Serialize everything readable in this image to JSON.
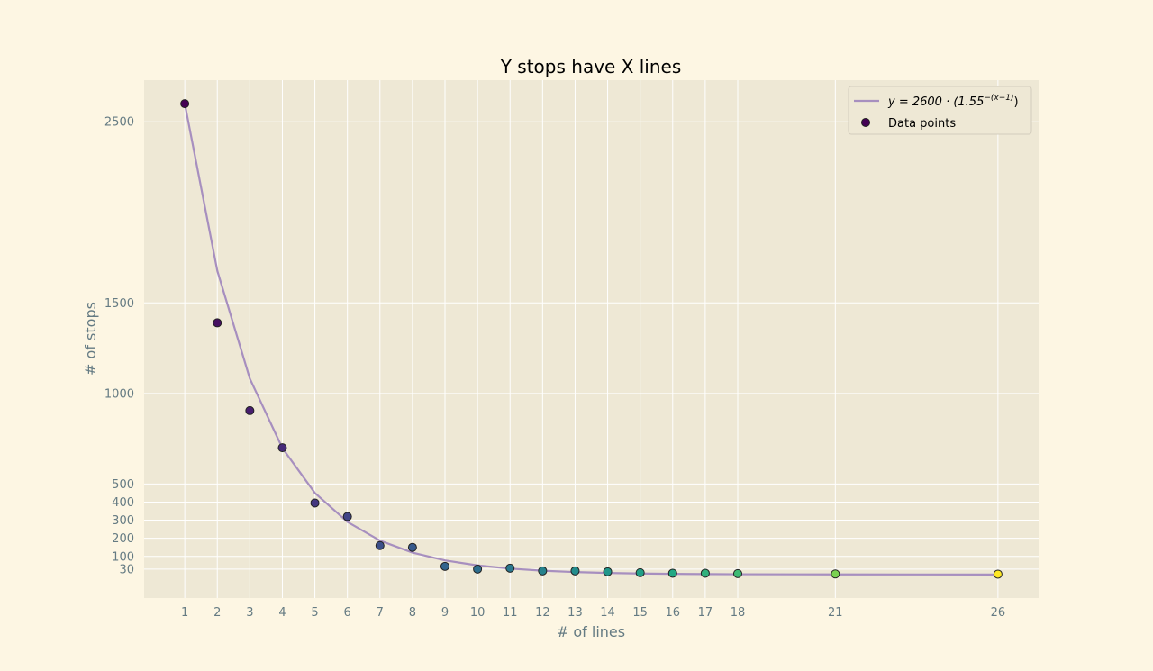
{
  "chart_data": {
    "type": "scatter",
    "title": "Y stops have X lines",
    "xlabel": "# of lines",
    "ylabel": "# of stops",
    "xlim": [
      -0.25,
      27.25
    ],
    "ylim": [
      -130,
      2730
    ],
    "x_ticks": [
      1,
      2,
      3,
      4,
      5,
      6,
      7,
      8,
      9,
      10,
      11,
      12,
      13,
      14,
      15,
      16,
      17,
      18,
      21,
      26
    ],
    "y_ticks": [
      30,
      100,
      200,
      300,
      400,
      500,
      1000,
      1500,
      2500
    ],
    "grid": true,
    "legend_placement": "top-right",
    "series": [
      {
        "name": "Data points",
        "kind": "scatter",
        "colormap": "viridis",
        "x": [
          1,
          2,
          3,
          4,
          5,
          6,
          7,
          8,
          9,
          10,
          11,
          12,
          13,
          14,
          15,
          16,
          17,
          18,
          21,
          26
        ],
        "y": [
          2600,
          1390,
          905,
          700,
          395,
          320,
          160,
          150,
          45,
          30,
          35,
          20,
          20,
          15,
          10,
          7,
          7,
          5,
          3,
          2
        ]
      },
      {
        "name": "y = 2600 · (1.55^−(x−1))",
        "kind": "line",
        "color": "#a78fbf",
        "formula": {
          "a": 2600,
          "b": 1.55
        },
        "x": [
          1,
          2,
          3,
          4,
          5,
          6,
          7,
          8,
          9,
          10,
          11,
          12,
          13,
          14,
          15,
          16,
          17,
          18,
          21,
          26
        ]
      }
    ],
    "legend": {
      "line_label_prefix": "y = 2600 · (1.55",
      "line_label_exponent": "−(x−1)",
      "line_label_suffix": ")",
      "scatter_label": "Data points"
    }
  },
  "colors": {
    "page_background": "#fdf6e3",
    "plot_background": "#eee8d5",
    "grid": "#ffffff",
    "line": "#a78fbf",
    "marker_edge": "#222222",
    "tick_text": "#657b83"
  }
}
